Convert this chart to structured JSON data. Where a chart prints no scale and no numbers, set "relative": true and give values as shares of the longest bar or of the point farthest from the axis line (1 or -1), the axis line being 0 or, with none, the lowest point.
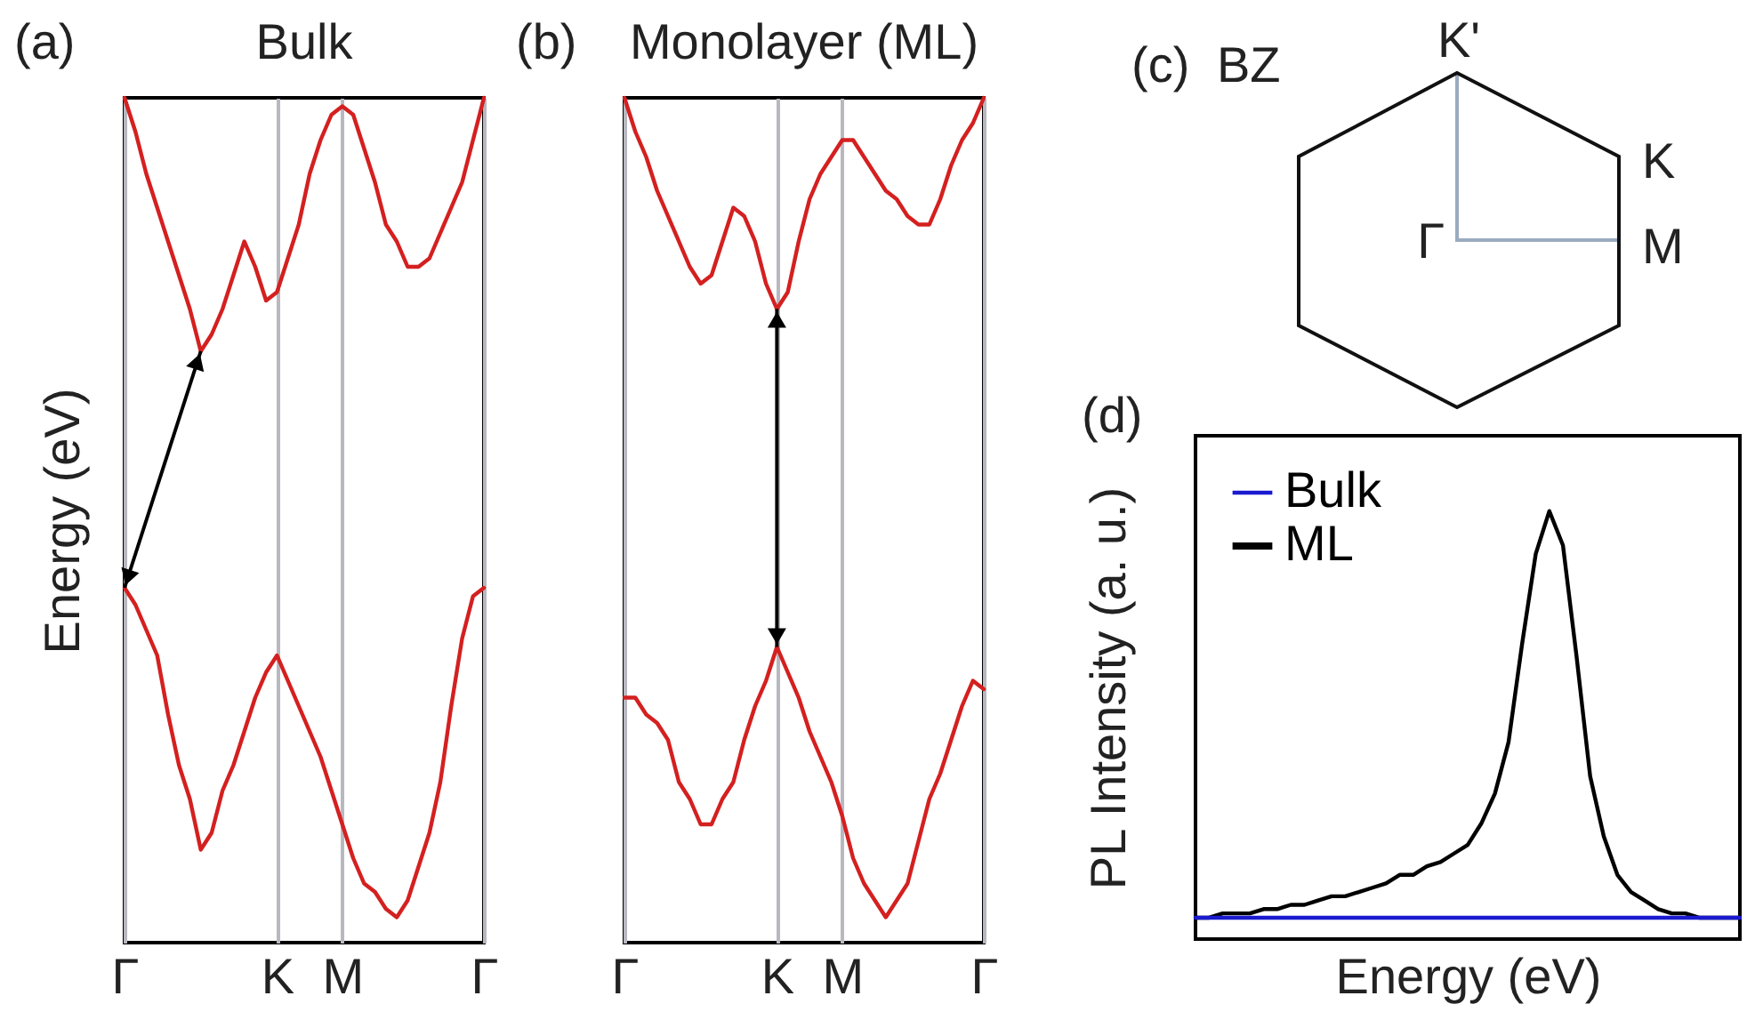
{
  "chart_data": [
    {
      "type": "line",
      "title": "Bulk",
      "ylabel": "Energy (eV)",
      "annotations": [
        "(a)"
      ],
      "relative": true,
      "grid": "x",
      "categories": [
        "Γ",
        null,
        null,
        null,
        null,
        null,
        null,
        null,
        null,
        null,
        null,
        null,
        null,
        null,
        "K",
        null,
        null,
        null,
        null,
        null,
        "M",
        null,
        null,
        null,
        null,
        null,
        null,
        null,
        null,
        null,
        null,
        null,
        null,
        "Γ"
      ],
      "series": [
        {
          "color": "#d42020",
          "values": [
            1.0,
            0.96,
            0.91,
            0.87,
            0.83,
            0.79,
            0.75,
            0.7,
            0.72,
            0.75,
            0.79,
            0.83,
            0.8,
            0.76,
            0.77,
            0.81,
            0.85,
            0.91,
            0.95,
            0.98,
            0.99,
            0.98,
            0.94,
            0.9,
            0.85,
            0.83,
            0.8,
            0.8,
            0.81,
            0.84,
            0.87,
            0.9,
            0.95,
            1.0
          ]
        },
        {
          "color": "#d42020",
          "values": [
            0.42,
            0.4,
            0.37,
            0.34,
            0.27,
            0.21,
            0.17,
            0.11,
            0.13,
            0.18,
            0.21,
            0.25,
            0.29,
            0.32,
            0.34,
            0.31,
            0.28,
            0.25,
            0.22,
            0.18,
            0.14,
            0.1,
            0.07,
            0.06,
            0.04,
            0.03,
            0.05,
            0.09,
            0.13,
            0.19,
            0.28,
            0.36,
            0.41,
            0.42
          ]
        }
      ]
    },
    {
      "type": "line",
      "title": "Monolayer (ML)",
      "annotations": [
        "(b)"
      ],
      "relative": true,
      "grid": "x",
      "categories": [
        "Γ",
        null,
        null,
        null,
        null,
        null,
        null,
        null,
        null,
        null,
        null,
        null,
        null,
        null,
        "K",
        null,
        null,
        null,
        null,
        null,
        "M",
        null,
        null,
        null,
        null,
        null,
        null,
        null,
        null,
        null,
        null,
        null,
        null,
        "Γ"
      ],
      "series": [
        {
          "color": "#d42020",
          "values": [
            1.0,
            0.96,
            0.93,
            0.89,
            0.86,
            0.83,
            0.8,
            0.78,
            0.79,
            0.83,
            0.87,
            0.86,
            0.83,
            0.78,
            0.75,
            0.77,
            0.83,
            0.88,
            0.91,
            0.93,
            0.95,
            0.95,
            0.93,
            0.91,
            0.89,
            0.88,
            0.86,
            0.85,
            0.85,
            0.88,
            0.92,
            0.95,
            0.97,
            1.0
          ]
        },
        {
          "color": "#d42020",
          "values": [
            0.29,
            0.29,
            0.27,
            0.26,
            0.24,
            0.19,
            0.17,
            0.14,
            0.14,
            0.17,
            0.19,
            0.24,
            0.28,
            0.31,
            0.35,
            0.32,
            0.29,
            0.25,
            0.22,
            0.19,
            0.15,
            0.1,
            0.07,
            0.05,
            0.03,
            0.05,
            0.07,
            0.12,
            0.17,
            0.2,
            0.24,
            0.28,
            0.31,
            0.3
          ]
        }
      ]
    },
    {
      "type": "other",
      "title": "BZ",
      "annotations": [
        "(c)",
        "K'",
        "K",
        "Γ",
        "M"
      ]
    },
    {
      "type": "line",
      "xlabel": "Energy (eV)",
      "ylabel": "PL Intensity (a. u.)",
      "annotations": [
        "(d)"
      ],
      "relative": true,
      "legend": "top left",
      "categories": [
        null,
        null,
        null,
        null,
        null,
        null,
        null,
        null,
        null,
        null,
        null,
        null,
        null,
        null,
        null,
        null,
        null,
        null,
        null,
        null,
        null,
        null,
        null,
        null,
        null,
        null,
        null,
        null,
        null,
        null,
        null,
        null,
        null,
        null,
        null,
        null,
        null,
        null,
        null,
        null,
        null
      ],
      "series": [
        {
          "name": "Bulk",
          "color": "#1a1ad0",
          "values": [
            0.05,
            0.05,
            0.05,
            0.05,
            0.05,
            0.05,
            0.05,
            0.05,
            0.05,
            0.05,
            0.05,
            0.05,
            0.05,
            0.05,
            0.05,
            0.05,
            0.05,
            0.05,
            0.05,
            0.05,
            0.05,
            0.05,
            0.05,
            0.05,
            0.05,
            0.05,
            0.05,
            0.05,
            0.05,
            0.05,
            0.05,
            0.05,
            0.05,
            0.05,
            0.05,
            0.05,
            0.05,
            0.05,
            0.05,
            0.05,
            0.05
          ]
        },
        {
          "name": "ML",
          "color": "#000000",
          "values": [
            0.05,
            0.05,
            0.06,
            0.06,
            0.06,
            0.07,
            0.07,
            0.08,
            0.08,
            0.09,
            0.1,
            0.1,
            0.11,
            0.12,
            0.13,
            0.15,
            0.15,
            0.17,
            0.18,
            0.2,
            0.22,
            0.27,
            0.34,
            0.46,
            0.69,
            0.9,
            1.0,
            0.92,
            0.66,
            0.38,
            0.24,
            0.15,
            0.11,
            0.09,
            0.07,
            0.06,
            0.06,
            0.05,
            0.05,
            0.05,
            0.05
          ]
        }
      ]
    }
  ]
}
